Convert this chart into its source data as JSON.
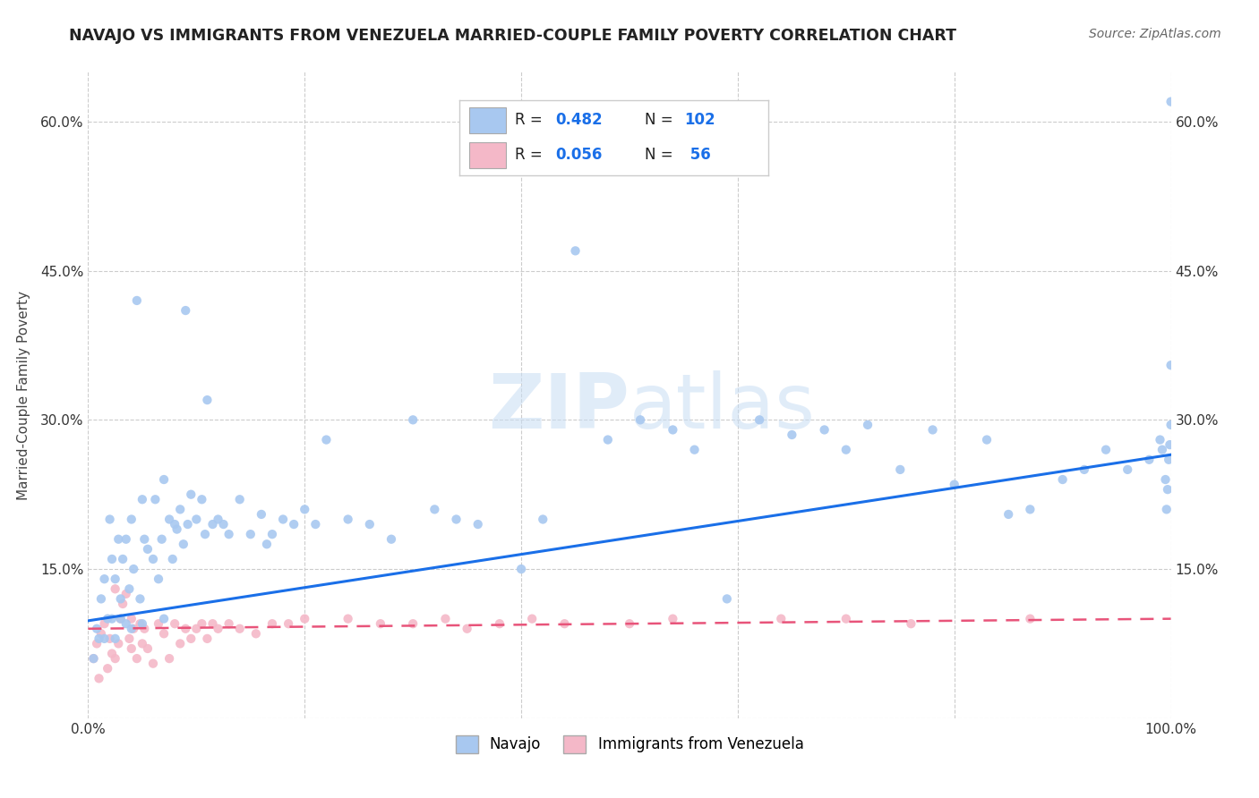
{
  "title": "NAVAJO VS IMMIGRANTS FROM VENEZUELA MARRIED-COUPLE FAMILY POVERTY CORRELATION CHART",
  "source_text": "Source: ZipAtlas.com",
  "ylabel": "Married-Couple Family Poverty",
  "xlim": [
    0,
    1.0
  ],
  "ylim": [
    0,
    0.65
  ],
  "xticks": [
    0.0,
    0.2,
    0.4,
    0.6,
    0.8,
    1.0
  ],
  "xtick_labels": [
    "0.0%",
    "",
    "",
    "",
    "",
    "100.0%"
  ],
  "yticks": [
    0.0,
    0.15,
    0.3,
    0.45,
    0.6
  ],
  "ytick_labels": [
    "",
    "15.0%",
    "30.0%",
    "45.0%",
    "60.0%"
  ],
  "navajo_color": "#a8c8f0",
  "venezuela_color": "#f4b8c8",
  "navajo_line_color": "#1a6fe8",
  "venezuela_line_color": "#e8547a",
  "watermark_color": "#d8e8f8",
  "background_color": "#ffffff",
  "grid_color": "#cccccc",
  "blue_text": "#1a6fe8",
  "navajo_x": [
    0.005,
    0.008,
    0.01,
    0.012,
    0.015,
    0.015,
    0.018,
    0.02,
    0.022,
    0.022,
    0.025,
    0.025,
    0.028,
    0.03,
    0.03,
    0.032,
    0.035,
    0.035,
    0.038,
    0.04,
    0.04,
    0.042,
    0.045,
    0.048,
    0.05,
    0.05,
    0.052,
    0.055,
    0.06,
    0.062,
    0.065,
    0.068,
    0.07,
    0.07,
    0.075,
    0.078,
    0.08,
    0.082,
    0.085,
    0.088,
    0.09,
    0.092,
    0.095,
    0.1,
    0.105,
    0.108,
    0.11,
    0.115,
    0.12,
    0.125,
    0.13,
    0.14,
    0.15,
    0.16,
    0.165,
    0.17,
    0.18,
    0.19,
    0.2,
    0.21,
    0.22,
    0.24,
    0.26,
    0.28,
    0.3,
    0.32,
    0.34,
    0.36,
    0.4,
    0.42,
    0.45,
    0.48,
    0.51,
    0.54,
    0.56,
    0.59,
    0.62,
    0.65,
    0.68,
    0.7,
    0.72,
    0.75,
    0.78,
    0.8,
    0.83,
    0.85,
    0.87,
    0.9,
    0.92,
    0.94,
    0.96,
    0.98,
    0.99,
    0.992,
    0.995,
    0.996,
    0.997,
    0.998,
    0.999,
    1.0,
    1.0,
    1.0
  ],
  "navajo_y": [
    0.06,
    0.09,
    0.08,
    0.12,
    0.08,
    0.14,
    0.1,
    0.2,
    0.1,
    0.16,
    0.14,
    0.08,
    0.18,
    0.12,
    0.1,
    0.16,
    0.18,
    0.095,
    0.13,
    0.2,
    0.09,
    0.15,
    0.42,
    0.12,
    0.22,
    0.095,
    0.18,
    0.17,
    0.16,
    0.22,
    0.14,
    0.18,
    0.24,
    0.1,
    0.2,
    0.16,
    0.195,
    0.19,
    0.21,
    0.175,
    0.41,
    0.195,
    0.225,
    0.2,
    0.22,
    0.185,
    0.32,
    0.195,
    0.2,
    0.195,
    0.185,
    0.22,
    0.185,
    0.205,
    0.175,
    0.185,
    0.2,
    0.195,
    0.21,
    0.195,
    0.28,
    0.2,
    0.195,
    0.18,
    0.3,
    0.21,
    0.2,
    0.195,
    0.15,
    0.2,
    0.47,
    0.28,
    0.3,
    0.29,
    0.27,
    0.12,
    0.3,
    0.285,
    0.29,
    0.27,
    0.295,
    0.25,
    0.29,
    0.235,
    0.28,
    0.205,
    0.21,
    0.24,
    0.25,
    0.27,
    0.25,
    0.26,
    0.28,
    0.27,
    0.24,
    0.21,
    0.23,
    0.26,
    0.275,
    0.295,
    0.62,
    0.355
  ],
  "venezuela_x": [
    0.005,
    0.008,
    0.01,
    0.012,
    0.015,
    0.018,
    0.02,
    0.022,
    0.025,
    0.025,
    0.028,
    0.03,
    0.032,
    0.035,
    0.038,
    0.04,
    0.04,
    0.042,
    0.045,
    0.048,
    0.05,
    0.052,
    0.055,
    0.06,
    0.065,
    0.07,
    0.075,
    0.08,
    0.085,
    0.09,
    0.095,
    0.1,
    0.105,
    0.11,
    0.115,
    0.12,
    0.13,
    0.14,
    0.155,
    0.17,
    0.185,
    0.2,
    0.24,
    0.27,
    0.3,
    0.33,
    0.35,
    0.38,
    0.41,
    0.44,
    0.5,
    0.54,
    0.64,
    0.7,
    0.76,
    0.87
  ],
  "venezuela_y": [
    0.06,
    0.075,
    0.04,
    0.085,
    0.095,
    0.05,
    0.08,
    0.065,
    0.13,
    0.06,
    0.075,
    0.1,
    0.115,
    0.125,
    0.08,
    0.07,
    0.1,
    0.09,
    0.06,
    0.095,
    0.075,
    0.09,
    0.07,
    0.055,
    0.095,
    0.085,
    0.06,
    0.095,
    0.075,
    0.09,
    0.08,
    0.09,
    0.095,
    0.08,
    0.095,
    0.09,
    0.095,
    0.09,
    0.085,
    0.095,
    0.095,
    0.1,
    0.1,
    0.095,
    0.095,
    0.1,
    0.09,
    0.095,
    0.1,
    0.095,
    0.095,
    0.1,
    0.1,
    0.1,
    0.095,
    0.1
  ],
  "navajo_trend_x": [
    0.0,
    1.0
  ],
  "navajo_trend_y": [
    0.098,
    0.265
  ],
  "venezuela_trend_x": [
    0.0,
    1.0
  ],
  "venezuela_trend_y": [
    0.09,
    0.1
  ]
}
